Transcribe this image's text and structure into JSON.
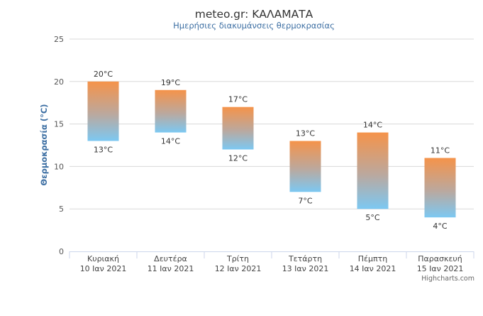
{
  "chart_data": {
    "type": "columnrange",
    "title": "meteo.gr: ΚΑΛΑΜΑΤΑ",
    "subtitle": "Ημερήσιες διακυμάνσεις θερμοκρασίας",
    "ylabel": "Θερμοκρασία (°C)",
    "ylim": [
      0,
      25
    ],
    "yticks": [
      0,
      5,
      10,
      15,
      20,
      25
    ],
    "grid": true,
    "categories": [
      {
        "day": "Κυριακή",
        "date": "10 Ιαν 2021"
      },
      {
        "day": "Δευτέρα",
        "date": "11 Ιαν 2021"
      },
      {
        "day": "Τρίτη",
        "date": "12 Ιαν 2021"
      },
      {
        "day": "Τετάρτη",
        "date": "13 Ιαν 2021"
      },
      {
        "day": "Πέμπτη",
        "date": "14 Ιαν 2021"
      },
      {
        "day": "Παρασκευή",
        "date": "15 Ιαν 2021"
      }
    ],
    "series": [
      {
        "low": [
          13,
          14,
          12,
          7,
          5,
          4
        ],
        "high": [
          20,
          19,
          17,
          13,
          14,
          11
        ],
        "low_labels": [
          "13°C",
          "14°C",
          "12°C",
          "7°C",
          "5°C",
          "4°C"
        ],
        "high_labels": [
          "20°C",
          "19°C",
          "17°C",
          "13°C",
          "14°C",
          "11°C"
        ]
      }
    ],
    "colors": {
      "warm": "#f5934a",
      "cool": "#7cc8f2",
      "grid": "#d8d8d8",
      "title": "#333333",
      "subtitle": "#3d6fa3"
    }
  },
  "credits": "Highcharts.com"
}
